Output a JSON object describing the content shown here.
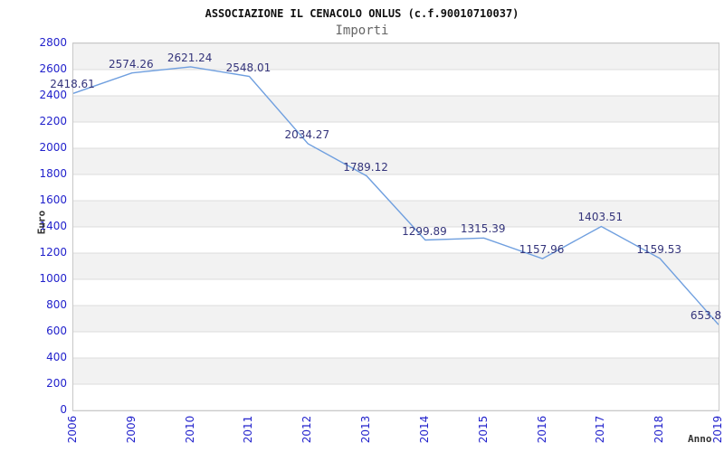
{
  "header": {
    "title": "ASSOCIAZIONE IL CENACOLO ONLUS (c.f.90010710037)",
    "subtitle": "Importi"
  },
  "chart_data": {
    "type": "line",
    "title": "ASSOCIAZIONE IL CENACOLO ONLUS (c.f.90010710037)",
    "subtitle": "Importi",
    "xlabel": "Anno",
    "ylabel": "Euro",
    "categories": [
      "2006",
      "2009",
      "2010",
      "2011",
      "2012",
      "2013",
      "2014",
      "2015",
      "2016",
      "2017",
      "2018",
      "2019"
    ],
    "values": [
      2418.61,
      2574.26,
      2621.24,
      2548.01,
      2034.27,
      1789.12,
      1299.89,
      1315.39,
      1157.96,
      1403.51,
      1159.53,
      653.8
    ],
    "value_labels": [
      "2418.61",
      "2574.26",
      "2621.24",
      "2548.01",
      "2034.27",
      "1789.12",
      "1299.89",
      "1315.39",
      "1157.96",
      "1403.51",
      "1159.53",
      "653.8"
    ],
    "ylim": [
      0,
      2800
    ],
    "yticks": [
      0,
      200,
      400,
      600,
      800,
      1000,
      1200,
      1400,
      1600,
      1800,
      2000,
      2200,
      2400,
      2600,
      2800
    ],
    "grid": "horizontal alternating bands, gray band starts at top (2800-2600)",
    "legend": "none",
    "markers": "none",
    "colors": {
      "line": "#6f9fdf",
      "tick_label": "#2222cc",
      "data_label": "#34347b",
      "band": "#f2f2f2",
      "grid_line": "#dcdcdc",
      "plot_border": "#c8c8c8",
      "title": "#111111",
      "subtitle": "#666666",
      "axis_title": "#333333"
    }
  }
}
